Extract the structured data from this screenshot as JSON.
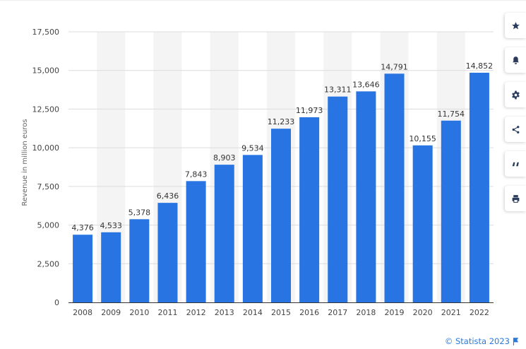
{
  "chart_data": {
    "type": "bar",
    "title": "",
    "xlabel": "",
    "ylabel": "Revenue in million euros",
    "categories": [
      "2008",
      "2009",
      "2010",
      "2011",
      "2012",
      "2013",
      "2014",
      "2015",
      "2016",
      "2017",
      "2018",
      "2019",
      "2020",
      "2021",
      "2022"
    ],
    "values": [
      4376,
      4533,
      5378,
      6436,
      7843,
      8903,
      9534,
      11233,
      11973,
      13311,
      13646,
      14791,
      10155,
      11754,
      14852
    ],
    "value_labels": [
      "4,376",
      "4,533",
      "5,378",
      "6,436",
      "7,843",
      "8,903",
      "9,534",
      "11,233",
      "11,973",
      "13,311",
      "13,646",
      "14,791",
      "10,155",
      "11,754",
      "14,852"
    ],
    "ylim": [
      0,
      17500
    ],
    "yticks": [
      0,
      2500,
      5000,
      7500,
      10000,
      12500,
      15000,
      17500
    ],
    "ytick_labels": [
      "0",
      "2,500",
      "5,000",
      "7,500",
      "10,000",
      "12,500",
      "15,000",
      "17,500"
    ],
    "grid": true,
    "bar_color": "#2874e2",
    "stripe_color": "#f4f4f4"
  },
  "toolbar": {
    "items": [
      {
        "icon": "star-icon",
        "label": "Add to favorites"
      },
      {
        "icon": "bell-icon",
        "label": "Notifications"
      },
      {
        "icon": "gear-icon",
        "label": "Settings"
      },
      {
        "icon": "share-icon",
        "label": "Share"
      },
      {
        "icon": "quote-icon",
        "label": "Cite"
      },
      {
        "icon": "print-icon",
        "label": "Print"
      }
    ]
  },
  "footer": {
    "copyright": "© Statista 2023",
    "link_color": "#2b79d9"
  }
}
